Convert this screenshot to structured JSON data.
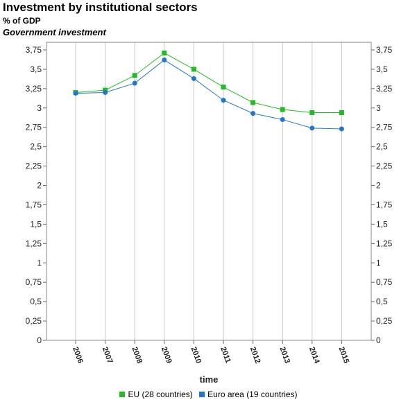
{
  "header": {
    "title": "Investment by institutional sectors",
    "subtitle": "% of GDP",
    "subsubtitle": "Government investment"
  },
  "chart_data": {
    "type": "line",
    "title": "Investment by institutional sectors",
    "subtitle": "% of GDP",
    "xlabel": "time",
    "ylabel": "",
    "categories": [
      "2006",
      "2007",
      "2008",
      "2009",
      "2010",
      "2011",
      "2012",
      "2013",
      "2014",
      "2015"
    ],
    "ylim": [
      0,
      3.75
    ],
    "yticks": [
      "0",
      "0,25",
      "0,5",
      "0,75",
      "1",
      "1,25",
      "1,5",
      "1,75",
      "2",
      "2,25",
      "2,5",
      "2,75",
      "3",
      "3,25",
      "3,5",
      "3,75"
    ],
    "grid": "vertical",
    "legend_position": "bottom-center",
    "series": [
      {
        "name": "EU (28 countries)",
        "color": "#22bb22",
        "marker": "square",
        "values": [
          3.2,
          3.23,
          3.42,
          3.71,
          3.5,
          3.27,
          3.07,
          2.98,
          2.94,
          2.94
        ]
      },
      {
        "name": "Euro area (19 countries)",
        "color": "#2277cc",
        "marker": "circle",
        "values": [
          3.19,
          3.2,
          3.32,
          3.62,
          3.38,
          3.1,
          2.93,
          2.85,
          2.74,
          2.73
        ]
      }
    ]
  }
}
